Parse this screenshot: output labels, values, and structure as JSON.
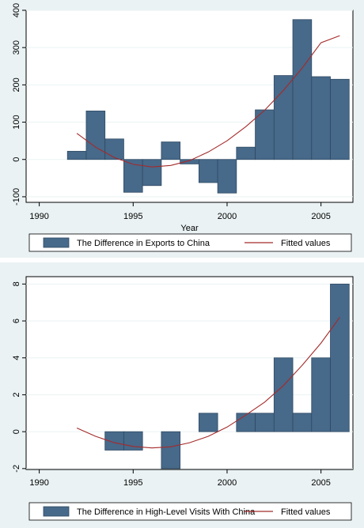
{
  "colors": {
    "panel_bg": "#eaf2f3",
    "plot_bg": "#ffffff",
    "bar_fill": "#47698a",
    "bar_stroke": "#2f4a63",
    "fit_line": "#a52a2a"
  },
  "chart_data": [
    {
      "type": "bar",
      "xlabel": "Year",
      "ylabel": "",
      "xlim": [
        1989.3,
        2006.7
      ],
      "ylim": [
        -115,
        400
      ],
      "xticks": [
        1990,
        1995,
        2000,
        2005
      ],
      "yticks": [
        -100,
        0,
        100,
        200,
        300,
        400
      ],
      "grid": true,
      "legend": "bottom",
      "series": [
        {
          "name": "The Difference in Exports to China",
          "x": [
            1992,
            1993,
            1994,
            1995,
            1996,
            1997,
            1998,
            1999,
            2000,
            2001,
            2002,
            2003,
            2004,
            2005,
            2006
          ],
          "values": [
            22,
            130,
            55,
            -88,
            -70,
            47,
            -12,
            -62,
            -90,
            33,
            133,
            225,
            375,
            222,
            215
          ]
        },
        {
          "name": "Fitted values",
          "type": "line",
          "x": [
            1992,
            1993,
            1994,
            1995,
            1996,
            1997,
            1998,
            1999,
            2000,
            2001,
            2002,
            2003,
            2004,
            2005,
            2006
          ],
          "values": [
            70,
            33,
            5,
            -13,
            -20,
            -16,
            -3,
            20,
            50,
            88,
            132,
            185,
            245,
            313,
            332
          ]
        }
      ]
    },
    {
      "type": "bar",
      "xlabel": "",
      "ylabel": "",
      "xlim": [
        1989.3,
        2006.7
      ],
      "ylim": [
        -2.05,
        8.4
      ],
      "xticks": [
        1990,
        1995,
        2000,
        2005
      ],
      "yticks": [
        -2,
        0,
        2,
        4,
        6,
        8
      ],
      "grid": true,
      "legend": "bottom",
      "series": [
        {
          "name": "The Difference in High-Level Visits With China",
          "x": [
            1992,
            1993,
            1994,
            1995,
            1996,
            1997,
            1998,
            1999,
            2000,
            2001,
            2002,
            2003,
            2004,
            2005,
            2006
          ],
          "values": [
            0,
            0,
            -1,
            -1,
            0,
            -2,
            0,
            1,
            0,
            1,
            1,
            4,
            1,
            4,
            8
          ]
        },
        {
          "name": "Fitted values",
          "type": "line",
          "x": [
            1992,
            1993,
            1994,
            1995,
            1996,
            1997,
            1998,
            1999,
            2000,
            2001,
            2002,
            2003,
            2004,
            2005,
            2006
          ],
          "values": [
            0.2,
            -0.25,
            -0.6,
            -0.8,
            -0.88,
            -0.82,
            -0.6,
            -0.25,
            0.25,
            0.9,
            1.6,
            2.5,
            3.6,
            4.8,
            6.2
          ]
        }
      ]
    }
  ]
}
